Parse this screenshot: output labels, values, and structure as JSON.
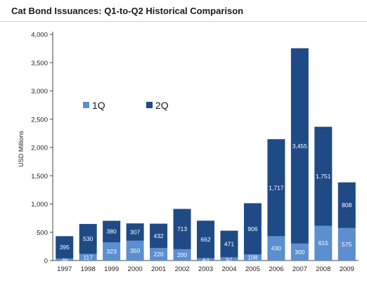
{
  "chart_data": {
    "type": "bar",
    "stacked": true,
    "title": "Cat Bond Issuances: Q1-to-Q2 Historical Comparison",
    "ylabel": "USD Millions",
    "xlabel": "",
    "categories": [
      "1997",
      "1998",
      "1999",
      "2000",
      "2001",
      "2002",
      "2003",
      "2004",
      "2005",
      "2006",
      "2007",
      "2008",
      "2009"
    ],
    "series": [
      {
        "name": "1Q",
        "color": "#5b8fd0",
        "values": [
          36,
          117,
          323,
          350,
          220,
          200,
          43,
          57,
          108,
          430,
          300,
          615,
          575
        ]
      },
      {
        "name": "2Q",
        "color": "#1f4a86",
        "values": [
          395,
          530,
          380,
          307,
          432,
          713,
          662,
          471,
          906,
          1717,
          3455,
          1751,
          808
        ]
      }
    ],
    "ylim": [
      0,
      4000
    ],
    "yticks": [
      0,
      500,
      1000,
      1500,
      2000,
      2500,
      3000,
      3500,
      4000
    ],
    "ytick_labels": [
      "0",
      "500",
      "1,000",
      "1,500",
      "2,000",
      "2,500",
      "3,000",
      "3,500",
      "4,000"
    ],
    "grid": false,
    "legend": "upper-left inside plot"
  }
}
